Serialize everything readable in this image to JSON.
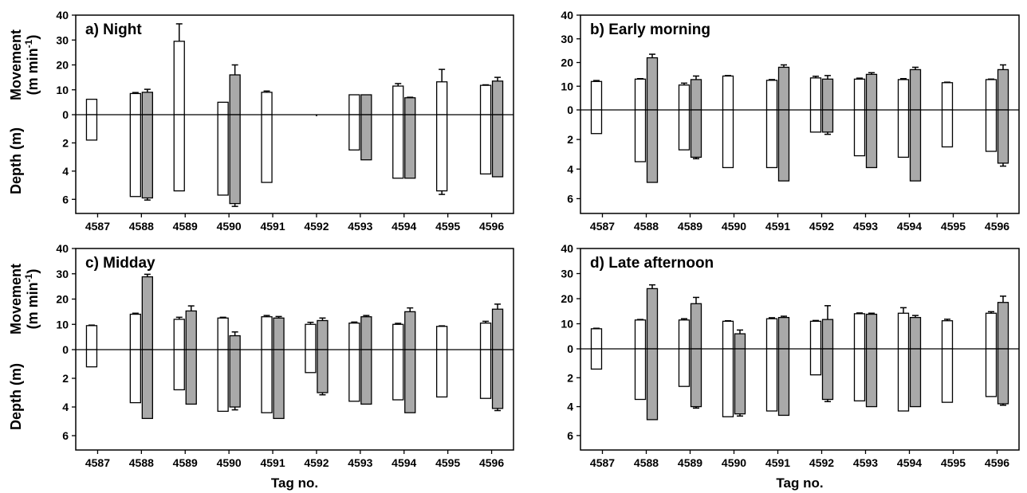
{
  "axes_text": {
    "movement_label": "Movement",
    "movement_unit": "(m min",
    "movement_unit_sup": "-1",
    "movement_unit_close": ")",
    "depth_label": "Depth (m)",
    "x_label": "Tag no."
  },
  "colors": {
    "open_bar": "#ffffff",
    "filled_bar": "#a9a9a9",
    "stroke": "#000000"
  },
  "chart_data": [
    {
      "type": "bar",
      "panel": "a",
      "title": "a)  Night",
      "categories": [
        "4587",
        "4588",
        "4589",
        "4590",
        "4591",
        "4592",
        "4593",
        "4594",
        "4595",
        "4596"
      ],
      "movement_ticks": [
        "40",
        "30",
        "20",
        "10",
        "0"
      ],
      "depth_ticks": [
        "2",
        "4",
        "6"
      ],
      "movement_ylim": [
        0,
        40
      ],
      "depth_ylim": [
        0,
        7
      ],
      "series": [
        {
          "style": "open",
          "movement": [
            6.2,
            8.5,
            29.5,
            5,
            9,
            null,
            8,
            11.5,
            13.2,
            11.8
          ],
          "movement_err": [
            0,
            0.4,
            7,
            0,
            0.5,
            null,
            0,
            1,
            5,
            0.2
          ],
          "depth": [
            1.8,
            5.8,
            5.4,
            5.7,
            4.8,
            null,
            2.5,
            4.5,
            5.4,
            4.2
          ],
          "depth_err": [
            0,
            0,
            0,
            0,
            0,
            null,
            0,
            0,
            0.25,
            0
          ]
        },
        {
          "style": "filled",
          "movement": [
            null,
            9,
            null,
            16,
            null,
            null,
            8,
            6.8,
            null,
            13.5
          ],
          "movement_err": [
            null,
            1.2,
            null,
            4,
            null,
            null,
            0,
            0.2,
            null,
            1.5
          ],
          "depth": [
            null,
            5.9,
            null,
            6.3,
            null,
            null,
            3.2,
            4.5,
            null,
            4.4
          ],
          "depth_err": [
            null,
            0.15,
            null,
            0.2,
            null,
            null,
            0,
            0,
            null,
            0
          ]
        }
      ]
    },
    {
      "type": "bar",
      "panel": "b",
      "title": "b)  Early morning",
      "categories": [
        "4587",
        "4588",
        "4589",
        "4590",
        "4591",
        "4592",
        "4593",
        "4594",
        "4595",
        "4596"
      ],
      "movement_ticks": [
        "40",
        "30",
        "20",
        "10",
        "0"
      ],
      "depth_ticks": [
        "2",
        "4",
        "6"
      ],
      "movement_ylim": [
        0,
        40
      ],
      "depth_ylim": [
        0,
        7
      ],
      "series": [
        {
          "style": "open",
          "movement": [
            12,
            13,
            10.5,
            14.3,
            12.5,
            13.5,
            13,
            12.8,
            11.5,
            12.8
          ],
          "movement_err": [
            0.4,
            0.2,
            0.8,
            0.2,
            0.3,
            0.7,
            0.4,
            0.4,
            0.2,
            0.2
          ],
          "depth": [
            1.6,
            3.5,
            2.7,
            3.9,
            3.9,
            1.5,
            3.1,
            3.2,
            2.5,
            2.8
          ],
          "depth_err": [
            0,
            0,
            0,
            0,
            0,
            0,
            0,
            0,
            0,
            0
          ]
        },
        {
          "style": "filled",
          "movement": [
            null,
            22,
            12.8,
            null,
            18,
            13,
            15,
            17,
            null,
            17
          ],
          "movement_err": [
            null,
            1.5,
            1.5,
            null,
            1,
            1.5,
            0.7,
            1,
            null,
            2
          ],
          "depth": [
            null,
            4.9,
            3.2,
            null,
            4.8,
            1.5,
            3.9,
            4.8,
            null,
            3.6
          ],
          "depth_err": [
            null,
            0,
            0.1,
            null,
            0,
            0.15,
            0,
            0,
            null,
            0.2
          ]
        }
      ]
    },
    {
      "type": "bar",
      "panel": "c",
      "title": "c)  Midday",
      "categories": [
        "4587",
        "4588",
        "4589",
        "4590",
        "4591",
        "4592",
        "4593",
        "4594",
        "4595",
        "4596"
      ],
      "movement_ticks": [
        "40",
        "30",
        "20",
        "10",
        "0"
      ],
      "depth_ticks": [
        "2",
        "4",
        "6"
      ],
      "movement_ylim": [
        0,
        40
      ],
      "depth_ylim": [
        0,
        7
      ],
      "series": [
        {
          "style": "open",
          "movement": [
            9.5,
            14,
            12,
            12.5,
            13,
            10,
            10.5,
            10,
            9.2,
            10.5
          ],
          "movement_err": [
            0.2,
            0.4,
            0.8,
            0.3,
            0.5,
            0.8,
            0.4,
            0.4,
            0.2,
            0.7
          ],
          "depth": [
            1.2,
            3.7,
            2.8,
            4.3,
            4.4,
            1.6,
            3.6,
            3.5,
            3.3,
            3.4
          ],
          "depth_err": [
            0,
            0,
            0,
            0,
            0,
            0,
            0,
            0,
            0,
            0
          ]
        },
        {
          "style": "filled",
          "movement": [
            null,
            28.8,
            15.3,
            5.5,
            12.5,
            11.5,
            13,
            15,
            null,
            16
          ],
          "movement_err": [
            null,
            1,
            2,
            1.5,
            0.6,
            1,
            0.5,
            1.5,
            null,
            2
          ],
          "depth": [
            null,
            4.8,
            3.8,
            4,
            4.8,
            3,
            3.8,
            4.4,
            null,
            4.1
          ],
          "depth_err": [
            null,
            0,
            0,
            0.2,
            0,
            0.15,
            0,
            0,
            null,
            0.15
          ]
        }
      ]
    },
    {
      "type": "bar",
      "panel": "d",
      "title": "d)  Late afternoon",
      "categories": [
        "4587",
        "4588",
        "4589",
        "4590",
        "4591",
        "4592",
        "4593",
        "4594",
        "4595",
        "4596"
      ],
      "movement_ticks": [
        "40",
        "30",
        "20",
        "10",
        "0"
      ],
      "depth_ticks": [
        "2",
        "4",
        "6"
      ],
      "movement_ylim": [
        0,
        40
      ],
      "depth_ylim": [
        0,
        7
      ],
      "series": [
        {
          "style": "open",
          "movement": [
            8,
            11.5,
            11.5,
            11,
            12,
            11,
            14,
            14.2,
            11.2,
            14.2
          ],
          "movement_err": [
            0.2,
            0.2,
            0.5,
            0.2,
            0.4,
            0.3,
            0.3,
            2.2,
            0.6,
            0.6
          ],
          "depth": [
            1.4,
            3.5,
            2.6,
            4.7,
            4.3,
            1.8,
            3.6,
            4.3,
            3.7,
            3.3
          ],
          "depth_err": [
            0,
            0,
            0,
            0,
            0,
            0,
            0,
            0,
            0,
            0
          ]
        },
        {
          "style": "filled",
          "movement": [
            null,
            24,
            18,
            6,
            12.5,
            11.7,
            13.8,
            12.5,
            null,
            18.5
          ],
          "movement_err": [
            null,
            1.5,
            2.5,
            1.5,
            0.5,
            5.5,
            0.4,
            0.8,
            null,
            2.5
          ],
          "depth": [
            null,
            4.9,
            4,
            4.5,
            4.6,
            3.5,
            4,
            4,
            null,
            3.8
          ],
          "depth_err": [
            null,
            0,
            0.1,
            0.15,
            0,
            0.15,
            0,
            0,
            null,
            0.1
          ]
        }
      ]
    }
  ]
}
